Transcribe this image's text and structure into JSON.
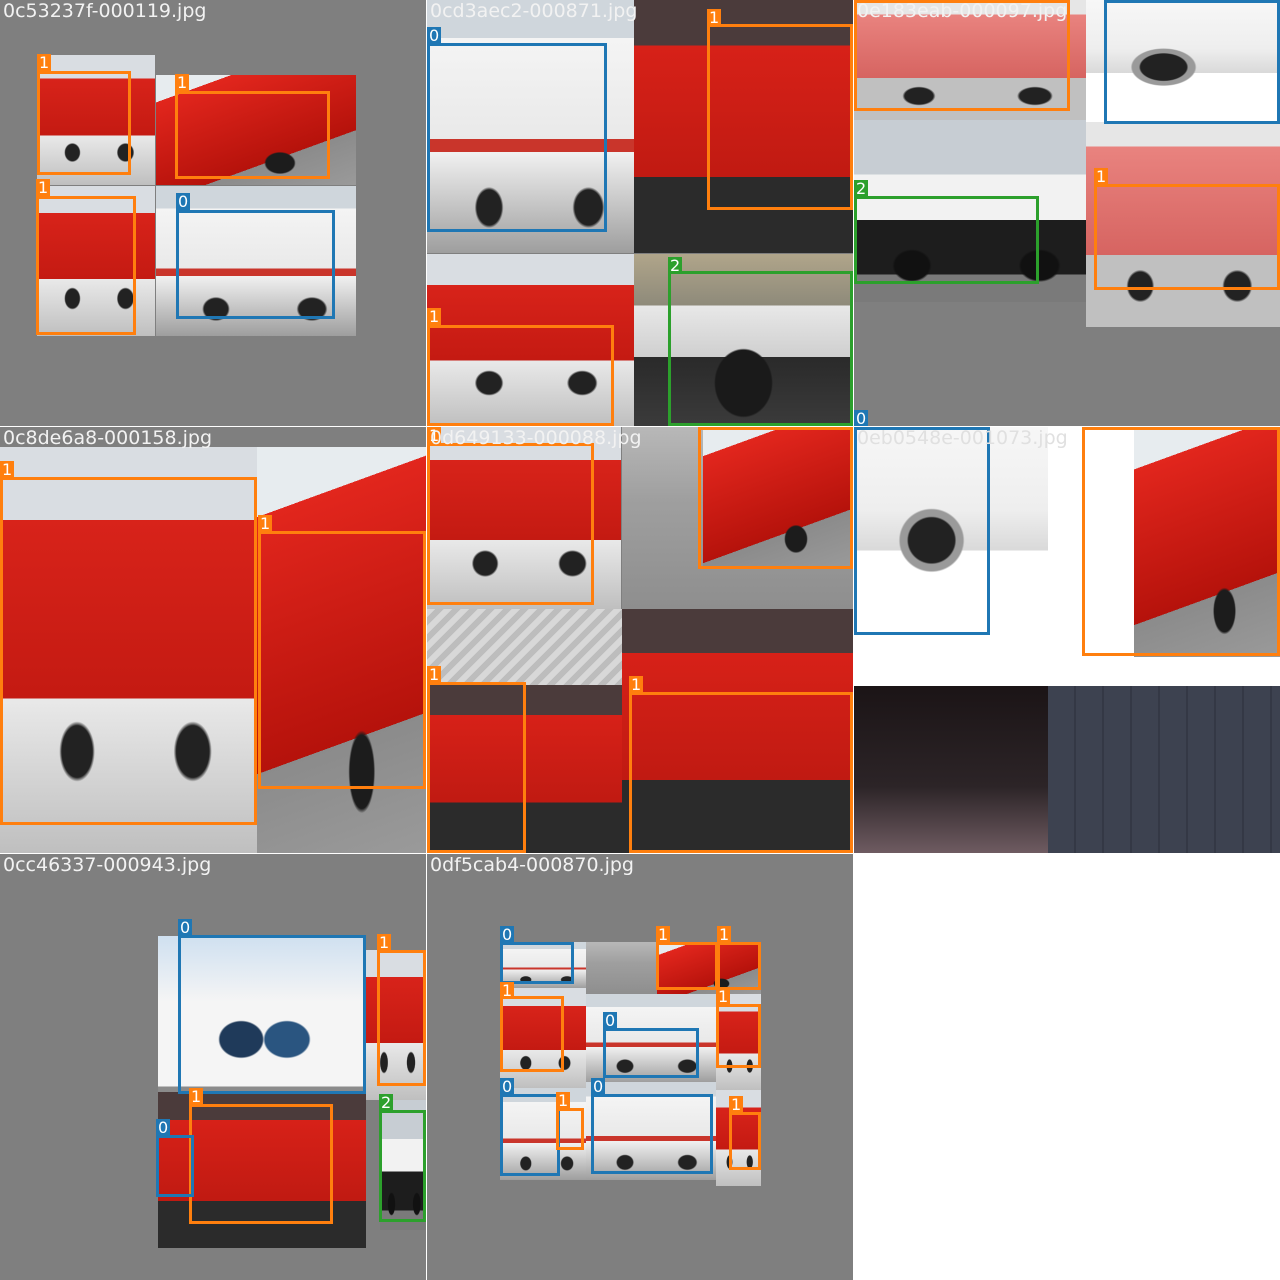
{
  "tiles": [
    {
      "filename": "0c53237f-000119.jpg"
    },
    {
      "filename": "0cd3aec2-000871.jpg"
    },
    {
      "filename": "0e183eab-000097.jpg"
    },
    {
      "filename": "0c8de6a8-000158.jpg"
    },
    {
      "filename": "0d649133-000088.jpg"
    },
    {
      "filename": "0eb0548e-001073.jpg"
    },
    {
      "filename": "0cc46337-000943.jpg"
    },
    {
      "filename": "0df5cab4-000870.jpg"
    }
  ],
  "class_labels": {
    "ambulance": "0",
    "fire_truck": "1",
    "police_car": "2"
  },
  "class_colors": {
    "0": "#1f77b4",
    "1": "#ff7f0e",
    "2": "#2ca02c"
  },
  "grid_background": "#7f7f7f"
}
